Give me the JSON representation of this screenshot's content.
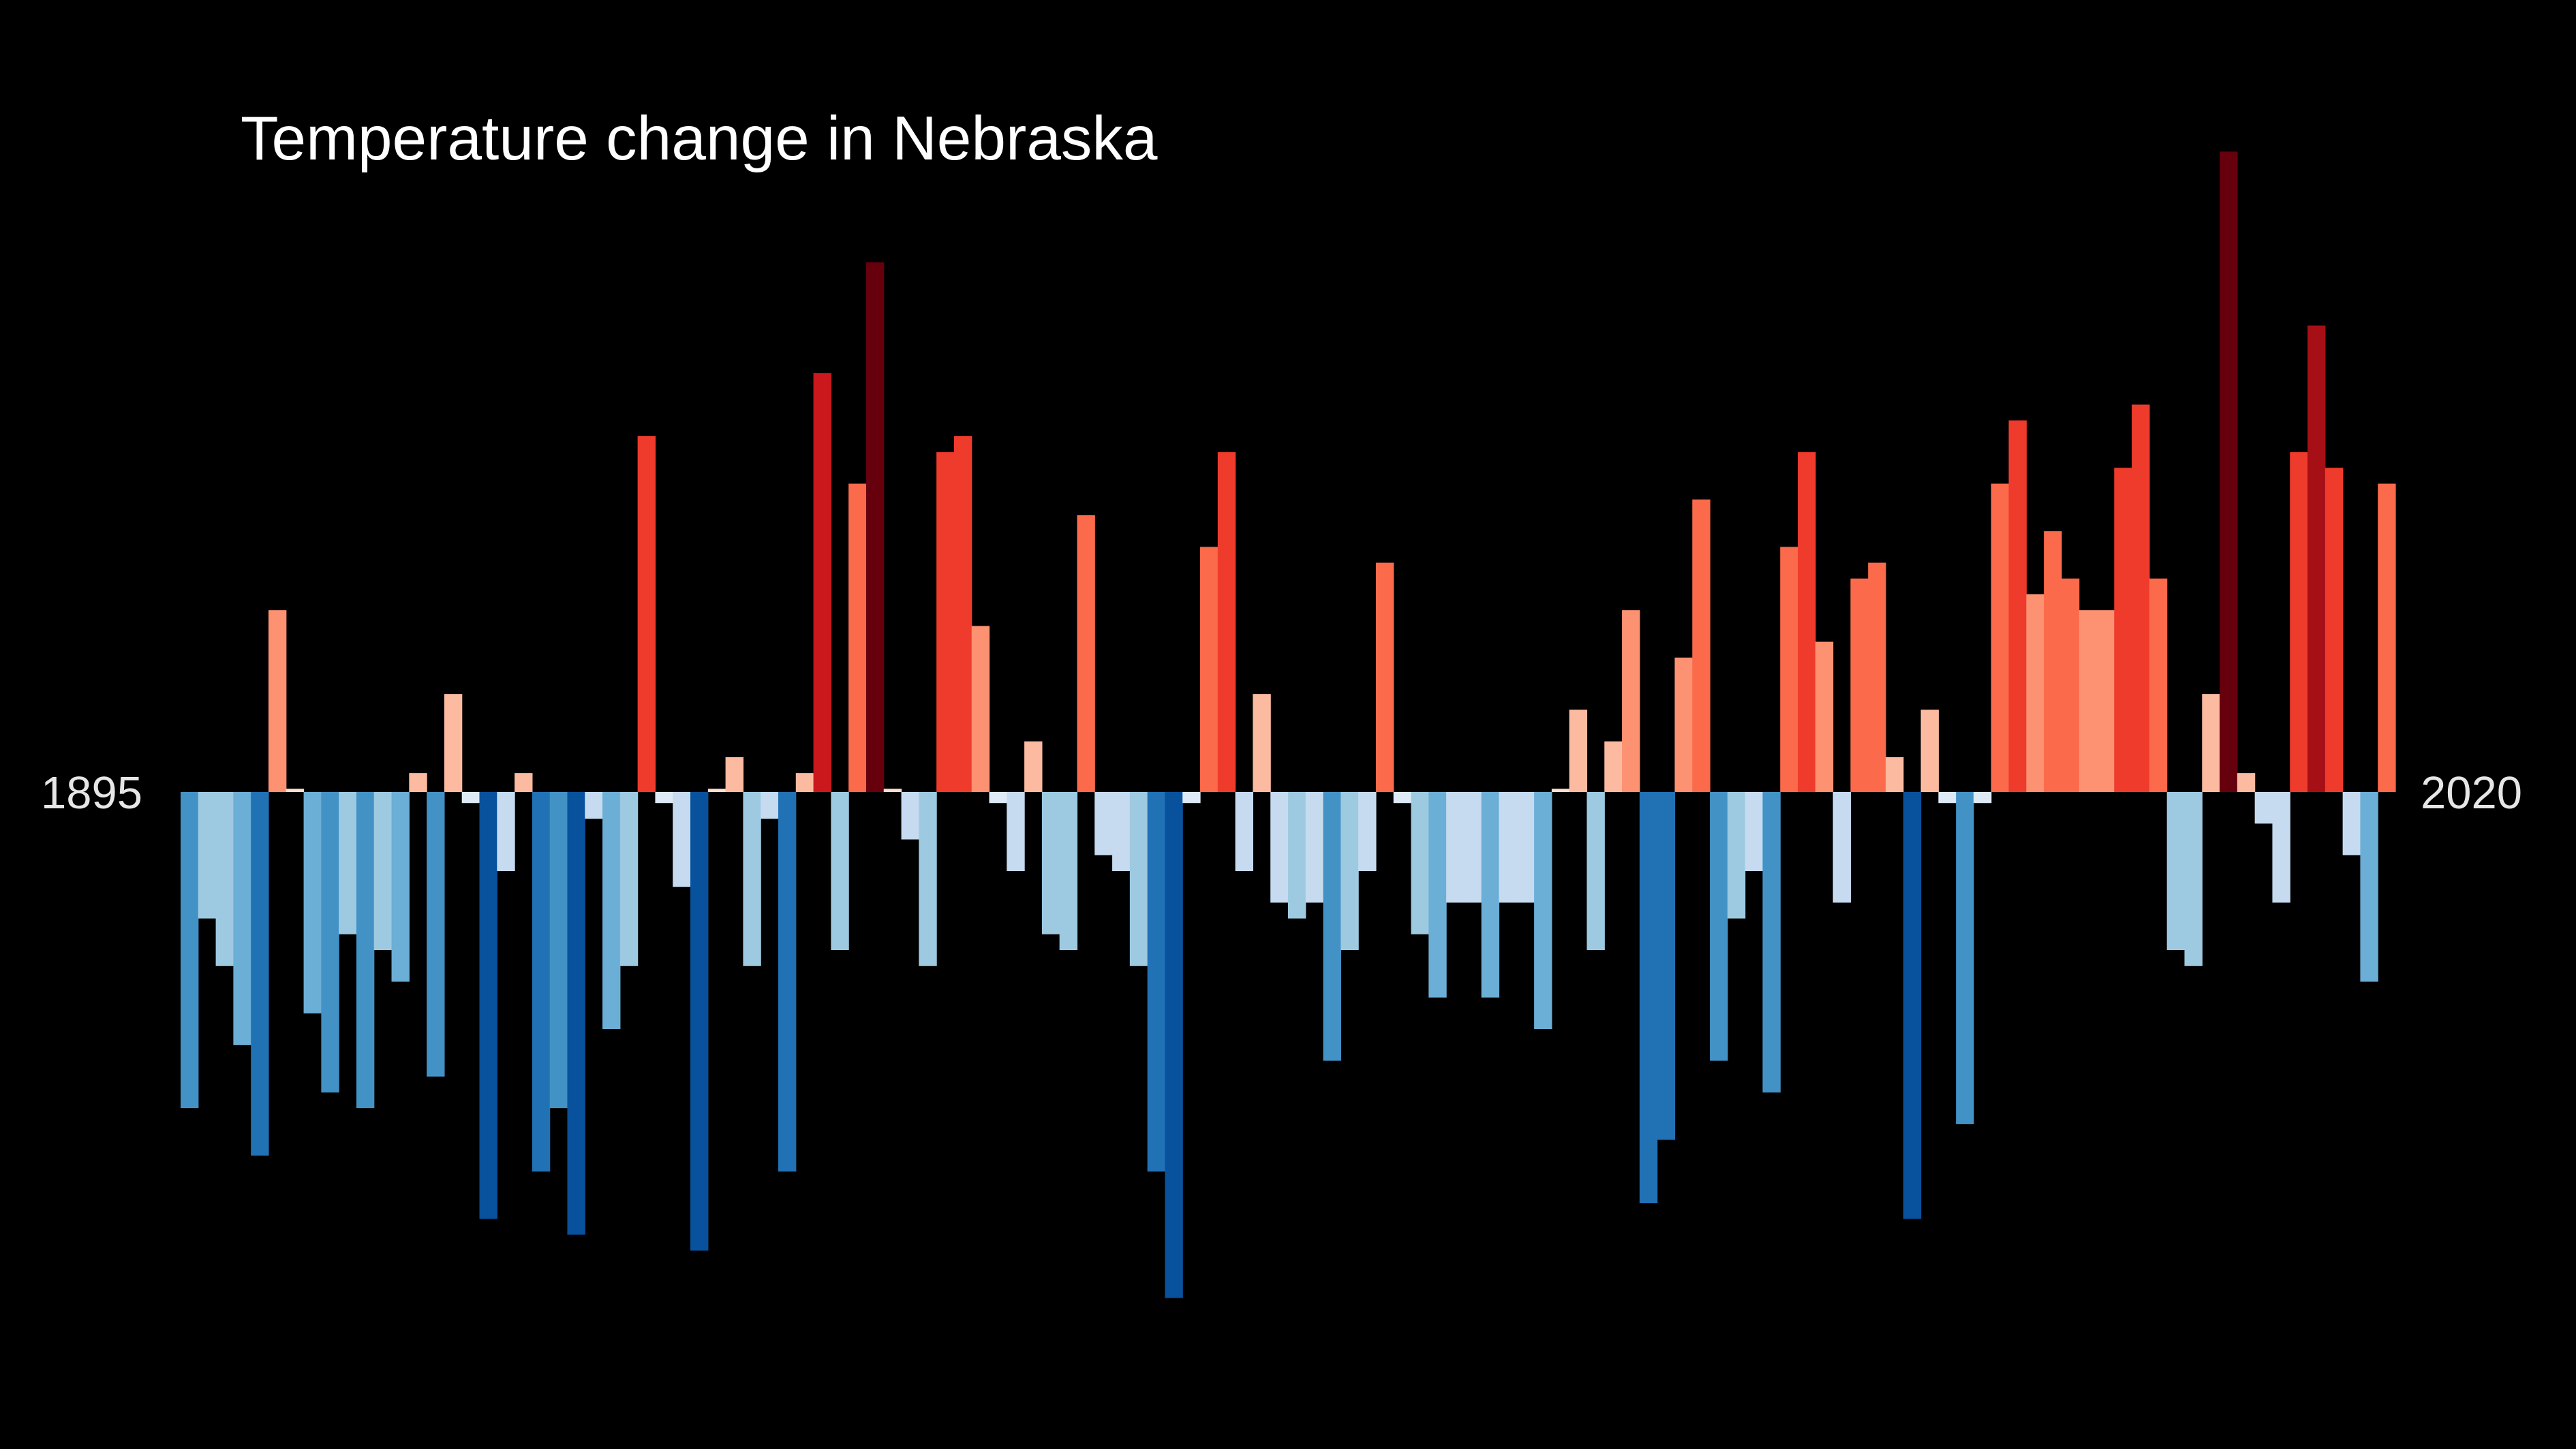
{
  "chart_data": {
    "type": "bar",
    "title": "Temperature change in Nebraska",
    "start_label": "1895",
    "end_label": "2020",
    "x_start": 1895,
    "x_end": 2020,
    "xlabel": "",
    "ylabel": "",
    "ylim": [
      -3.3,
      4.2
    ],
    "grid": false,
    "legend": "none",
    "background": "#000000",
    "text_color": "#ffffff",
    "palette": {
      "blue_6": "#08519c",
      "blue_5": "#2171b5",
      "blue_4": "#4292c6",
      "blue_3": "#6baed6",
      "blue_2": "#9ecae1",
      "blue_1": "#c6dbef",
      "blue_0": "#deebf7",
      "red_0": "#fee0d2",
      "red_1": "#fcbba1",
      "red_2": "#fc9272",
      "red_3": "#fb6a4a",
      "red_4": "#ef3b2c",
      "red_5": "#cb181d",
      "red_6": "#a50f15",
      "red_7": "#67000d"
    },
    "values": [
      -2.0,
      -0.8,
      -1.1,
      -1.6,
      -2.3,
      1.15,
      0.02,
      -1.4,
      -1.9,
      -0.9,
      -2.0,
      -1.0,
      -1.2,
      0.12,
      -1.8,
      0.62,
      -0.07,
      -2.7,
      -0.5,
      0.12,
      -2.4,
      -2.0,
      -2.8,
      -0.17,
      -1.5,
      -1.1,
      2.25,
      -0.07,
      -0.6,
      -2.9,
      0.02,
      0.22,
      -1.1,
      -0.17,
      -2.4,
      0.12,
      2.65,
      -1.0,
      1.95,
      3.35,
      0.02,
      -0.3,
      -1.1,
      2.15,
      2.25,
      1.05,
      -0.07,
      -0.5,
      0.32,
      -0.9,
      -1.0,
      1.75,
      -0.4,
      -0.5,
      -1.1,
      -2.4,
      -3.2,
      -0.07,
      1.55,
      2.15,
      -0.5,
      0.62,
      -0.7,
      -0.8,
      -0.7,
      -1.7,
      -1.0,
      -0.5,
      1.45,
      -0.07,
      -0.9,
      -1.3,
      -0.7,
      -0.7,
      -1.3,
      -0.7,
      -0.7,
      -1.5,
      0.02,
      0.52,
      -1.0,
      0.32,
      1.15,
      -2.6,
      -2.2,
      0.85,
      1.85,
      -1.7,
      -0.8,
      -0.5,
      -1.9,
      1.55,
      2.15,
      0.95,
      -0.7,
      1.35,
      1.45,
      0.22,
      -2.7,
      0.52,
      -0.07,
      -2.1,
      -0.07,
      1.95,
      2.35,
      1.25,
      1.65,
      1.35,
      1.15,
      1.15,
      2.05,
      2.45,
      1.35,
      -1.0,
      -1.1,
      0.62,
      4.05,
      0.12,
      -0.2,
      -0.7,
      2.15,
      2.95,
      2.05,
      -0.4,
      -1.2,
      1.95
    ]
  }
}
